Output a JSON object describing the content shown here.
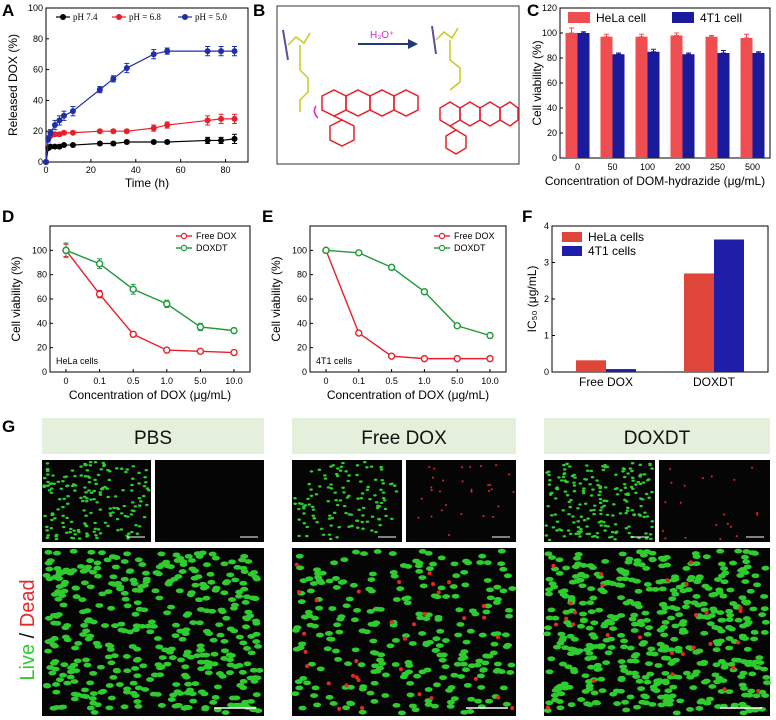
{
  "panels": {
    "A": "A",
    "B": "B",
    "C": "C",
    "D": "D",
    "E": "E",
    "F": "F",
    "G": "G"
  },
  "scheme_B": {
    "reaction_label": "H₃O⁺",
    "colors": {
      "drug": "#e8202a",
      "linker": "#c8c826",
      "polymer": "#5b4ea0",
      "arrow": "#1f3a7a"
    }
  },
  "chart_data": [
    {
      "id": "A",
      "type": "line",
      "xlabel": "Time (h)",
      "ylabel": "Released DOX (%)",
      "xlim": [
        0,
        90
      ],
      "ylim": [
        0,
        100
      ],
      "xticks": [
        0,
        20,
        40,
        60,
        80
      ],
      "yticks": [
        0,
        20,
        40,
        60,
        80,
        100
      ],
      "legend_position": "top",
      "series": [
        {
          "name": "pH 7.4",
          "color": "#000000",
          "x": [
            0,
            1,
            2,
            4,
            6,
            8,
            12,
            24,
            30,
            36,
            48,
            54,
            72,
            78,
            84
          ],
          "y": [
            0,
            9,
            10,
            10,
            10,
            11,
            11,
            12,
            12,
            13,
            13,
            13,
            14,
            14,
            15
          ],
          "err": [
            0,
            1,
            1,
            1,
            1,
            1,
            1,
            1,
            1,
            1,
            1,
            1,
            2,
            2,
            3
          ]
        },
        {
          "name": "pH = 6.8",
          "color": "#e8202a",
          "x": [
            0,
            1,
            2,
            4,
            6,
            8,
            12,
            24,
            30,
            36,
            48,
            54,
            72,
            78,
            84
          ],
          "y": [
            0,
            15,
            17,
            18,
            18,
            19,
            19,
            20,
            20,
            20,
            22,
            24,
            27,
            28,
            28
          ],
          "err": [
            0,
            1,
            1,
            1,
            1,
            1,
            1,
            1,
            1,
            1,
            2,
            2,
            3,
            3,
            3
          ]
        },
        {
          "name": "pH = 5.0",
          "color": "#1f2fa8",
          "x": [
            0,
            1,
            2,
            4,
            6,
            8,
            12,
            24,
            30,
            36,
            48,
            54,
            72,
            78,
            84
          ],
          "y": [
            0,
            15,
            19,
            24,
            27,
            30,
            33,
            47,
            54,
            61,
            70,
            72,
            72,
            72,
            72
          ],
          "err": [
            0,
            2,
            2,
            3,
            3,
            3,
            3,
            2,
            2,
            3,
            3,
            2,
            3,
            3,
            3
          ]
        }
      ]
    },
    {
      "id": "C",
      "type": "bar",
      "xlabel": "Concentration of DOM-hydrazide (μg/mL)",
      "ylabel": "Cell viability (%)",
      "ylim": [
        0,
        120
      ],
      "yticks": [
        0,
        20,
        40,
        60,
        80,
        100,
        120
      ],
      "categories": [
        "0",
        "50",
        "100",
        "200",
        "250",
        "500"
      ],
      "legend_position": "top",
      "series": [
        {
          "name": "HeLa cell",
          "color": "#ef4d4f",
          "values": [
            100,
            97,
            97,
            98,
            97,
            96
          ],
          "err": [
            4,
            2,
            2,
            2,
            1,
            3
          ]
        },
        {
          "name": "4T1 cell",
          "color": "#1a1a9c",
          "values": [
            100,
            83,
            85,
            83,
            84,
            84
          ],
          "err": [
            1,
            1,
            2,
            1,
            2,
            1
          ]
        }
      ]
    },
    {
      "id": "D",
      "type": "line",
      "xlabel": "Concentration of DOX (μg/mL)",
      "ylabel": "Cell viability (%)",
      "ylim": [
        0,
        120
      ],
      "yticks": [
        0,
        20,
        40,
        60,
        80,
        100
      ],
      "categories": [
        "0",
        "0.1",
        "0.5",
        "1.0",
        "5.0",
        "10.0"
      ],
      "annotation": "HeLa cells",
      "legend_position": "top-right",
      "series": [
        {
          "name": "Free DOX",
          "color": "#e8202a",
          "values": [
            100,
            64,
            31,
            18,
            17,
            16
          ],
          "err": [
            5,
            3,
            2,
            1,
            1,
            1
          ]
        },
        {
          "name": "DOXDT",
          "color": "#1e9a3a",
          "values": [
            100,
            89,
            68,
            56,
            37,
            34
          ],
          "err": [
            6,
            4,
            4,
            3,
            3,
            2
          ]
        }
      ]
    },
    {
      "id": "E",
      "type": "line",
      "xlabel": "Concentration of DOX (μg/mL)",
      "ylabel": "Cell viability (%)",
      "ylim": [
        0,
        120
      ],
      "yticks": [
        0,
        20,
        40,
        60,
        80,
        100
      ],
      "categories": [
        "0",
        "0.1",
        "0.5",
        "1.0",
        "5.0",
        "10.0"
      ],
      "annotation": "4T1 cells",
      "legend_position": "top-right",
      "series": [
        {
          "name": "Free DOX",
          "color": "#e8202a",
          "values": [
            100,
            32,
            13,
            11,
            11,
            11
          ],
          "err": [
            1,
            1,
            1,
            1,
            1,
            1
          ]
        },
        {
          "name": "DOXDT",
          "color": "#1e9a3a",
          "values": [
            100,
            98,
            86,
            66,
            38,
            30
          ],
          "err": [
            1,
            1,
            2,
            2,
            1,
            1
          ]
        }
      ]
    },
    {
      "id": "F",
      "type": "bar",
      "ylabel": "IC₅₀ (μg/mL)",
      "ylim": [
        0,
        4
      ],
      "yticks": [
        0,
        1,
        2,
        3,
        4
      ],
      "categories": [
        "Free DOX",
        "DOXDT"
      ],
      "legend_position": "top-left",
      "series": [
        {
          "name": "HeLa cells",
          "color": "#e0453a",
          "values": [
            0.32,
            2.7
          ]
        },
        {
          "name": "4T1 cells",
          "color": "#1e1ea8",
          "values": [
            0.08,
            3.63
          ]
        }
      ]
    }
  ],
  "panel_G": {
    "groups": [
      "PBS",
      "Free DOX",
      "DOXDT"
    ],
    "side_label": {
      "live": "Live",
      "slash": " / ",
      "dead": "Dead"
    },
    "colors": {
      "live": "#2ecc2e",
      "dead": "#e82828",
      "header_bg": "#e4f0dc"
    }
  }
}
